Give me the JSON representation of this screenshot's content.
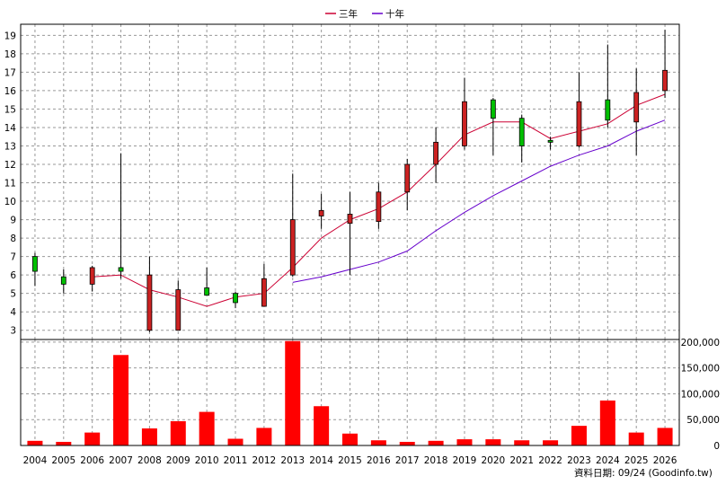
{
  "chart_data": [
    {
      "type": "candlestick",
      "legend": [
        "三年",
        "十年"
      ],
      "legend_position": "top-center",
      "grid": true,
      "ylim": [
        2.5,
        19.6
      ],
      "yticks": [
        3,
        4,
        5,
        6,
        7,
        8,
        9,
        10,
        11,
        12,
        13,
        14,
        15,
        16,
        17,
        18,
        19
      ],
      "x": [
        "2004",
        "2005",
        "2006",
        "2007",
        "2008",
        "2009",
        "2010",
        "2011",
        "2012",
        "2013",
        "2014",
        "2015",
        "2016",
        "2017",
        "2018",
        "2019",
        "2020",
        "2021",
        "2022",
        "2023",
        "2024",
        "2025",
        "2026"
      ],
      "ohlc": [
        {
          "open": 6.2,
          "high": 7.2,
          "low": 5.4,
          "close": 7.0
        },
        {
          "open": 5.5,
          "high": 6.3,
          "low": 5.0,
          "close": 5.9
        },
        {
          "open": 6.4,
          "high": 6.5,
          "low": 5.1,
          "close": 5.5
        },
        {
          "open": 6.2,
          "high": 12.6,
          "low": 5.8,
          "close": 6.4
        },
        {
          "open": 6.0,
          "high": 7.0,
          "low": 2.9,
          "close": 3.0
        },
        {
          "open": 5.2,
          "high": 5.7,
          "low": 3.0,
          "close": 3.0
        },
        {
          "open": 4.9,
          "high": 6.4,
          "low": 4.9,
          "close": 5.3
        },
        {
          "open": 4.5,
          "high": 5.1,
          "low": 4.2,
          "close": 5.0
        },
        {
          "open": 5.8,
          "high": 6.6,
          "low": 4.3,
          "close": 4.3
        },
        {
          "open": 9.0,
          "high": 11.5,
          "low": 5.9,
          "close": 6.0
        },
        {
          "open": 9.5,
          "high": 10.4,
          "low": 8.5,
          "close": 9.2
        },
        {
          "open": 9.3,
          "high": 10.5,
          "low": 6.0,
          "close": 8.8
        },
        {
          "open": 10.5,
          "high": 11.0,
          "low": 8.5,
          "close": 8.9
        },
        {
          "open": 12.0,
          "high": 12.3,
          "low": 9.5,
          "close": 10.5
        },
        {
          "open": 13.2,
          "high": 14.0,
          "low": 11.0,
          "close": 12.0
        },
        {
          "open": 15.4,
          "high": 16.7,
          "low": 12.8,
          "close": 13.0
        },
        {
          "open": 14.5,
          "high": 15.6,
          "low": 12.5,
          "close": 15.5
        },
        {
          "open": 13.0,
          "high": 14.7,
          "low": 12.1,
          "close": 14.5
        },
        {
          "open": 13.2,
          "high": 13.5,
          "low": 12.8,
          "close": 13.3
        },
        {
          "open": 15.4,
          "high": 17.0,
          "low": 12.9,
          "close": 13.0
        },
        {
          "open": 14.4,
          "high": 18.5,
          "low": 14.0,
          "close": 15.5
        },
        {
          "open": 15.9,
          "high": 17.2,
          "low": 12.5,
          "close": 14.3
        },
        {
          "open": 17.1,
          "high": 19.3,
          "low": 15.6,
          "close": 16.0
        }
      ],
      "series": [
        {
          "name": "三年",
          "color": "#cc0033",
          "values": [
            null,
            null,
            5.9,
            6.0,
            5.2,
            4.8,
            4.3,
            4.8,
            5.0,
            6.4,
            8.0,
            9.0,
            9.6,
            10.5,
            12.0,
            13.6,
            14.3,
            14.3,
            13.4,
            13.8,
            14.2,
            15.2,
            15.8
          ]
        },
        {
          "name": "十年",
          "color": "#6600cc",
          "values": [
            null,
            null,
            null,
            null,
            null,
            null,
            null,
            null,
            null,
            5.6,
            5.9,
            6.3,
            6.7,
            7.3,
            8.4,
            9.4,
            10.3,
            11.1,
            11.9,
            12.5,
            13.0,
            13.8,
            14.4
          ]
        }
      ],
      "up_color": "#ff0000",
      "down_color": "#00c000"
    },
    {
      "type": "bar",
      "categories": [
        "2004",
        "2005",
        "2006",
        "2007",
        "2008",
        "2009",
        "2010",
        "2011",
        "2012",
        "2013",
        "2014",
        "2015",
        "2016",
        "2017",
        "2018",
        "2019",
        "2020",
        "2021",
        "2022",
        "2023",
        "2024",
        "2025",
        "2026"
      ],
      "values": [
        9000,
        7000,
        25000,
        175000,
        33000,
        47000,
        65000,
        13000,
        34000,
        202000,
        76000,
        23000,
        10000,
        7000,
        9000,
        12000,
        12000,
        10000,
        10000,
        38000,
        87000,
        25000,
        34000
      ],
      "ylim": [
        0,
        205000
      ],
      "yticks": [
        0,
        50000,
        100000,
        150000,
        200000
      ],
      "ytick_labels": [
        "0",
        "50,000",
        "100,000",
        "150,000",
        "200,000"
      ],
      "color": "#ff0000"
    }
  ],
  "footer": "資料日期: 09/24 (Goodinfo.tw)"
}
